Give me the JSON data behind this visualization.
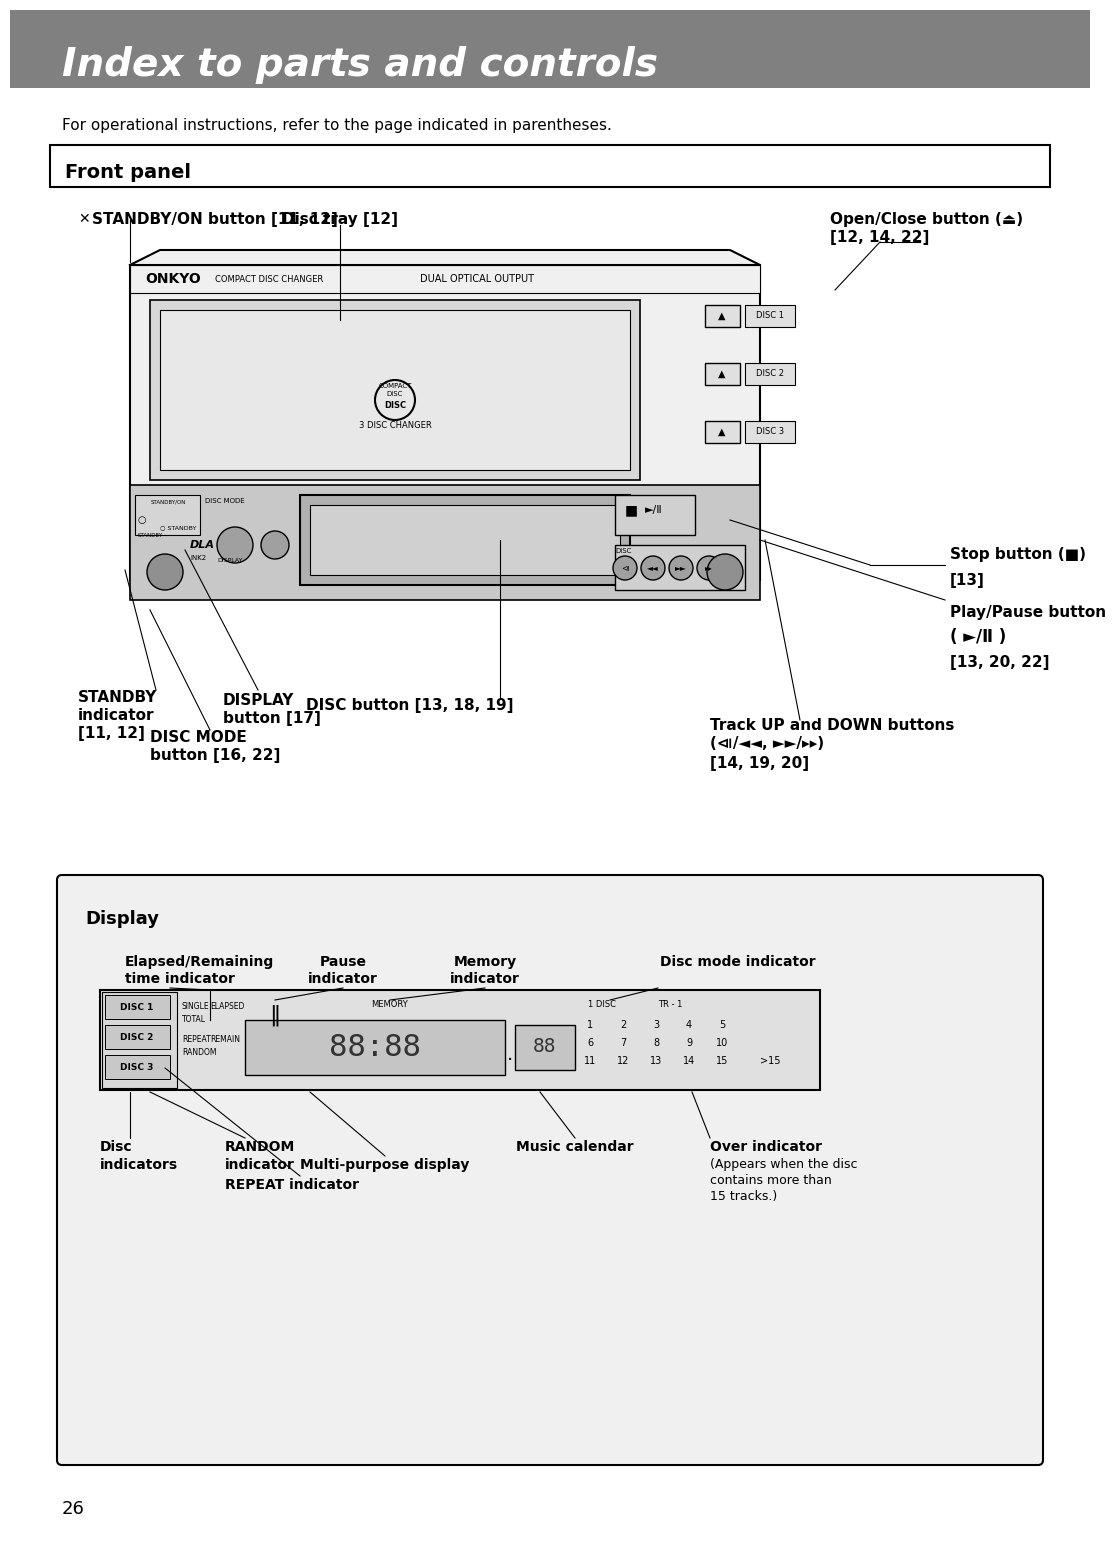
{
  "title": "Index to parts and controls",
  "title_bg": "#808080",
  "title_color": "#ffffff",
  "page_bg": "#ffffff",
  "subtitle": "For operational instructions, refer to the page indicated in parentheses.",
  "front_panel_title": "Front panel",
  "display_title": "Display",
  "page_number": "26",
  "front_panel_labels": {
    "standby_on": "✕ STANDBY/ON button [11, 12]",
    "disc_tray": "Disc tray [12]",
    "open_close": "Open/Close button (⏏)\n[12, 14, 22]",
    "stop_btn": "Stop button (■)\n[13]",
    "play_pause": "Play/Pause button\n(►/Ⅱ)\n[13, 20, 22]",
    "disc_button": "DISC button [13, 18, 19]",
    "track_updown": "Track UP and DOWN buttons\n(⧏/◄◄, ►►/▸▸)\n[14, 19, 20]",
    "standby_ind": "STANDBY\nindicator\n[11, 12]",
    "display_btn": "DISPLAY\nbutton [17]",
    "disc_mode": "DISC MODE\nbutton [16, 22]"
  },
  "display_labels": {
    "elapsed_remaining": "Elapsed/Remaining\ntime indicator",
    "pause_ind": "Pause\nindicator",
    "memory_ind": "Memory\nindicator",
    "disc_mode_ind": "Disc mode indicator",
    "disc_indicators": "Disc\nindicators",
    "random_ind": "RANDOM\nindicator",
    "repeat_ind": "REPEAT indicator",
    "multi_purpose": "Multi-purpose display",
    "music_calendar": "Music calendar",
    "over_ind": "Over indicator\n(Appears when the disc\ncontains more than\n15 tracks.)"
  }
}
